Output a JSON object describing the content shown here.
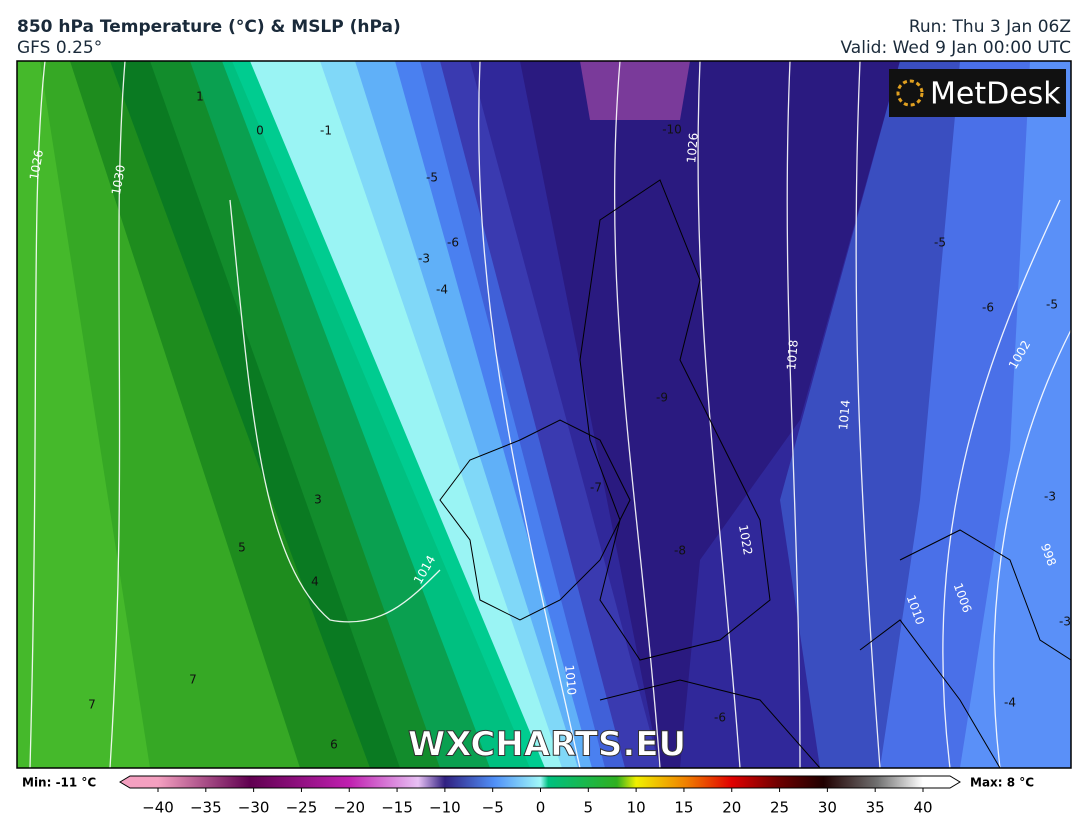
{
  "header": {
    "title": "850 hPa Temperature (°C) & MSLP (hPa)",
    "model": "GFS 0.25°",
    "run": "Run: Thu 3 Jan 06Z",
    "valid": "Valid: Wed 9 Jan 00:00 UTC"
  },
  "logo": "MetDesk",
  "watermark": "WXCHARTS.EU",
  "isobar_labels": [
    "1026",
    "1030",
    "1026",
    "1018",
    "1014",
    "1022",
    "1014",
    "1010",
    "1006",
    "1002",
    "998",
    "1010"
  ],
  "isotherm_labels": [
    "1",
    "0",
    "-1",
    "-10",
    "-5",
    "-6",
    "-3",
    "-4",
    "-5",
    "-6",
    "-5",
    "-9",
    "-7",
    "-8",
    "3",
    "5",
    "4",
    "7",
    "7",
    "6",
    "-3",
    "-3",
    "-4",
    "-6"
  ],
  "colorbar": {
    "min_label": "Min: -11 °C",
    "max_label": "Max: 8 °C",
    "ticks": [
      {
        "value": -40,
        "label": "−40"
      },
      {
        "value": -35,
        "label": "−35"
      },
      {
        "value": -30,
        "label": "−30"
      },
      {
        "value": -25,
        "label": "−25"
      },
      {
        "value": -20,
        "label": "−20"
      },
      {
        "value": -15,
        "label": "−15"
      },
      {
        "value": -10,
        "label": "−10"
      },
      {
        "value": -5,
        "label": "−5"
      },
      0,
      5,
      10,
      15,
      20,
      25,
      30,
      35,
      40
    ]
  }
}
